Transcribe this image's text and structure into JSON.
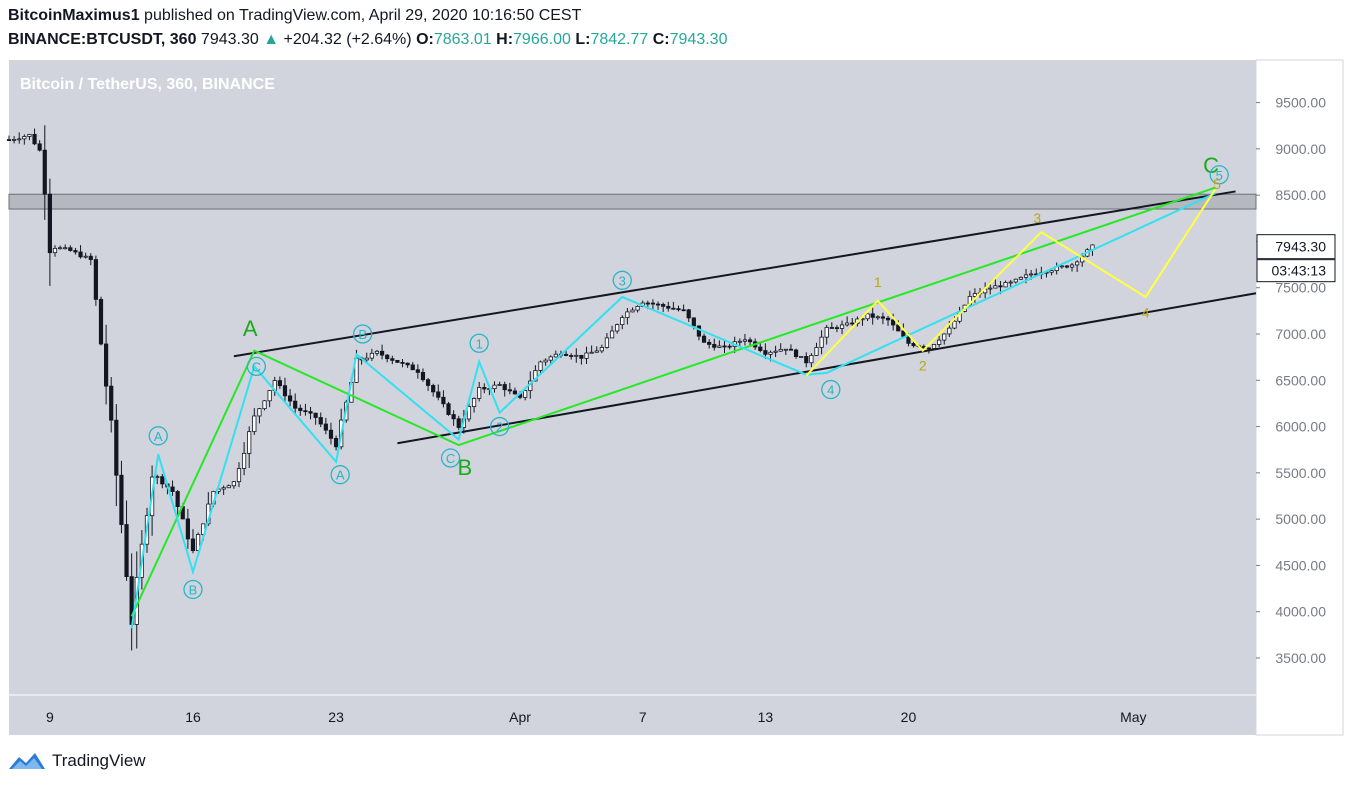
{
  "header": {
    "author": "BitcoinMaximus1",
    "published": "published on TradingView.com, April 29, 2020 10:16:50 CEST",
    "symbol": "BINANCE:BTCUSDT, 360",
    "last": "7943.30",
    "change": "+204.32 (+2.64%)",
    "open_label": "O:",
    "open": "7863.01",
    "high_label": "H:",
    "high": "7966.00",
    "low_label": "L:",
    "low": "7842.77",
    "close_label": "C:",
    "close": "7943.30"
  },
  "chart_data": {
    "type": "candlestick",
    "title": "Bitcoin / TetherUS, 360, BINANCE",
    "y_ticks": [
      "9500.00",
      "9000.00",
      "8500.00",
      "8000.00",
      "7500.00",
      "7000.00",
      "6500.00",
      "6000.00",
      "5500.00",
      "5000.00",
      "4500.00",
      "4000.00",
      "3500.00"
    ],
    "y_tick_values": [
      9500,
      9000,
      8500,
      8000,
      7500,
      7000,
      6500,
      6000,
      5500,
      5000,
      4500,
      4000,
      3500
    ],
    "x_ticks": [
      "9",
      "16",
      "23",
      "Apr",
      "7",
      "13",
      "20",
      "May"
    ],
    "x_tick_dates": [
      "2020-03-09",
      "2020-03-16",
      "2020-03-23",
      "2020-04-01",
      "2020-04-07",
      "2020-04-13",
      "2020-04-20",
      "2020-05-01"
    ],
    "ylim": [
      3100,
      9960
    ],
    "xlim": [
      "2020-03-07",
      "2020-05-07"
    ],
    "grid": false,
    "last_price": "7943.30",
    "countdown": "03:43:13",
    "resistance_zone": [
      8350,
      8510
    ],
    "price_path": [
      [
        "2020-03-07",
        9100
      ],
      [
        "2020-03-08",
        9150
      ],
      [
        "2020-03-08.6",
        8950
      ],
      [
        "2020-03-09",
        7950
      ],
      [
        "2020-03-10",
        7900
      ],
      [
        "2020-03-11",
        7800
      ],
      [
        "2020-03-12",
        6000
      ],
      [
        "2020-03-13",
        3900
      ],
      [
        "2020-03-14",
        5500
      ],
      [
        "2020-03-15",
        5300
      ],
      [
        "2020-03-16",
        4650
      ],
      [
        "2020-03-17",
        5300
      ],
      [
        "2020-03-18",
        5400
      ],
      [
        "2020-03-19",
        6100
      ],
      [
        "2020-03-20",
        6500
      ],
      [
        "2020-03-21",
        6200
      ],
      [
        "2020-03-22",
        6100
      ],
      [
        "2020-03-23",
        5800
      ],
      [
        "2020-03-24",
        6700
      ],
      [
        "2020-03-25",
        6800
      ],
      [
        "2020-03-26",
        6700
      ],
      [
        "2020-03-27",
        6600
      ],
      [
        "2020-03-28",
        6300
      ],
      [
        "2020-03-29",
        6000
      ],
      [
        "2020-03-30",
        6400
      ],
      [
        "2020-03-31",
        6450
      ],
      [
        "2020-04-01",
        6300
      ],
      [
        "2020-04-02",
        6700
      ],
      [
        "2020-04-03",
        6800
      ],
      [
        "2020-04-04",
        6750
      ],
      [
        "2020-04-05",
        6850
      ],
      [
        "2020-04-06",
        7200
      ],
      [
        "2020-04-07",
        7350
      ],
      [
        "2020-04-08",
        7300
      ],
      [
        "2020-04-09",
        7250
      ],
      [
        "2020-04-10",
        6900
      ],
      [
        "2020-04-11",
        6850
      ],
      [
        "2020-04-12",
        6950
      ],
      [
        "2020-04-13",
        6800
      ],
      [
        "2020-04-14",
        6850
      ],
      [
        "2020-04-15",
        6700
      ],
      [
        "2020-04-16",
        7050
      ],
      [
        "2020-04-17",
        7100
      ],
      [
        "2020-04-18",
        7200
      ],
      [
        "2020-04-19",
        7150
      ],
      [
        "2020-04-20",
        6900
      ],
      [
        "2020-04-21",
        6850
      ],
      [
        "2020-04-22",
        7050
      ],
      [
        "2020-04-23",
        7400
      ],
      [
        "2020-04-24",
        7500
      ],
      [
        "2020-04-25",
        7550
      ],
      [
        "2020-04-26",
        7650
      ],
      [
        "2020-04-27",
        7700
      ],
      [
        "2020-04-28",
        7750
      ],
      [
        "2020-04-29",
        7943.3
      ]
    ],
    "channel_lines": [
      {
        "color": "#131722",
        "points": [
          [
            "2020-03-18",
            6760
          ],
          [
            "2020-05-06",
            8540
          ]
        ]
      },
      {
        "color": "#131722",
        "points": [
          [
            "2020-03-26",
            5820
          ],
          [
            "2020-05-07",
            7440
          ]
        ]
      }
    ],
    "wave_paths": [
      {
        "color": "#26e826",
        "points": [
          [
            "2020-03-13",
            3950
          ],
          [
            "2020-03-19",
            6820
          ],
          [
            "2020-03-29",
            5800
          ],
          [
            "2020-05-05",
            8580
          ]
        ]
      },
      {
        "color": "#33e0f0",
        "points": [
          [
            "2020-03-13",
            3820
          ],
          [
            "2020-03-14.3",
            5700
          ],
          [
            "2020-03-16",
            4430
          ],
          [
            "2020-03-19",
            6650
          ],
          [
            "2020-03-23",
            5620
          ],
          [
            "2020-03-24",
            6780
          ],
          [
            "2020-03-29",
            5860
          ],
          [
            "2020-03-30",
            6700
          ],
          [
            "2020-03-31",
            6150
          ],
          [
            "2020-04-06",
            7400
          ],
          [
            "2020-04-15",
            6560
          ],
          [
            "2020-04-16",
            6580
          ],
          [
            "2020-05-05",
            8520
          ]
        ]
      },
      {
        "color": "#ffff44",
        "points": [
          [
            "2020-04-15",
            6550
          ],
          [
            "2020-04-18.5",
            7360
          ],
          [
            "2020-04-20.7",
            6820
          ],
          [
            "2020-04-26.5",
            8100
          ],
          [
            "2020-05-01.6",
            7400
          ],
          [
            "2020-05-05",
            8560
          ]
        ]
      }
    ],
    "wave_labels": [
      {
        "text": "A",
        "color": "#1aab1a",
        "circle": false,
        "at": [
          "2020-03-18.8",
          7060
        ],
        "size": 22
      },
      {
        "text": "B",
        "color": "#1aab1a",
        "circle": false,
        "at": [
          "2020-03-29.3",
          5560
        ],
        "size": 22
      },
      {
        "text": "C",
        "color": "#1aab1a",
        "circle": false,
        "at": [
          "2020-05-04.8",
          8820
        ],
        "size": 22
      },
      {
        "text": "A",
        "color": "#26b5c9",
        "circle": true,
        "at": [
          "2020-03-14.3",
          5900
        ]
      },
      {
        "text": "B",
        "color": "#26b5c9",
        "circle": true,
        "at": [
          "2020-03-16",
          4240
        ]
      },
      {
        "text": "C",
        "color": "#26b5c9",
        "circle": true,
        "at": [
          "2020-03-19.1",
          6650
        ]
      },
      {
        "text": "A",
        "color": "#26b5c9",
        "circle": true,
        "at": [
          "2020-03-23.2",
          5480
        ]
      },
      {
        "text": "B",
        "color": "#26b5c9",
        "circle": true,
        "at": [
          "2020-03-24.3",
          7000
        ]
      },
      {
        "text": "C",
        "color": "#26b5c9",
        "circle": true,
        "at": [
          "2020-03-28.6",
          5660
        ]
      },
      {
        "text": "1",
        "color": "#26b5c9",
        "circle": true,
        "at": [
          "2020-03-30",
          6900
        ]
      },
      {
        "text": "2",
        "color": "#26b5c9",
        "circle": true,
        "at": [
          "2020-03-31",
          6000
        ]
      },
      {
        "text": "3",
        "color": "#26b5c9",
        "circle": true,
        "at": [
          "2020-04-06",
          7580
        ]
      },
      {
        "text": "4",
        "color": "#26b5c9",
        "circle": true,
        "at": [
          "2020-04-16.2",
          6400
        ]
      },
      {
        "text": "5",
        "color": "#26b5c9",
        "circle": true,
        "at": [
          "2020-05-05.2",
          8720
        ]
      },
      {
        "text": "1",
        "color": "#b8a812",
        "circle": false,
        "at": [
          "2020-04-18.5",
          7560
        ],
        "size": 14
      },
      {
        "text": "2",
        "color": "#b8a812",
        "circle": false,
        "at": [
          "2020-04-20.7",
          6660
        ],
        "size": 14
      },
      {
        "text": "3",
        "color": "#b8a812",
        "circle": false,
        "at": [
          "2020-04-26.3",
          8250
        ],
        "size": 14
      },
      {
        "text": "4",
        "color": "#b8a812",
        "circle": false,
        "at": [
          "2020-05-01.6",
          7230
        ],
        "size": 14
      },
      {
        "text": "5",
        "color": "#b8a812",
        "circle": false,
        "at": [
          "2020-05-05.1",
          8620
        ],
        "size": 14
      }
    ]
  },
  "footer": {
    "brand": "TradingView"
  }
}
